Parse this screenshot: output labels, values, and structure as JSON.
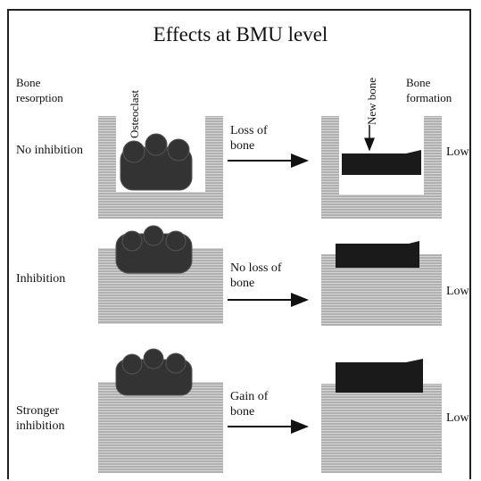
{
  "title": "Effects at BMU level",
  "header": {
    "bone_resorption": "Bone resorption",
    "osteoclast": "Osteoclast",
    "new_bone": "New bone",
    "bone_formation": "Bone formation"
  },
  "rows": [
    {
      "condition": "No inhibition",
      "change": "Loss of bone",
      "formation": "Low"
    },
    {
      "condition": "Inhibition",
      "change": "No loss of bone",
      "formation": "Low"
    },
    {
      "condition": "Stronger inhibition",
      "change": "Gain of bone",
      "formation": "Low"
    }
  ]
}
